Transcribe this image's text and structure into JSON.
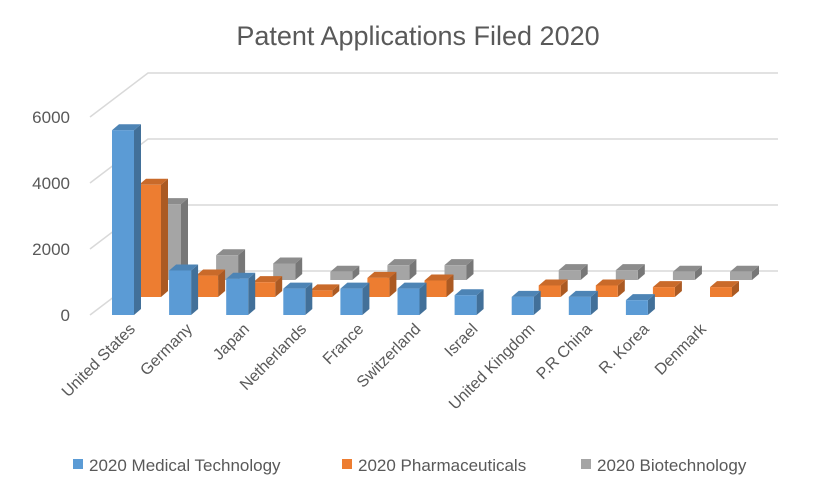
{
  "chart_data": {
    "type": "bar",
    "subtype": "3d-clustered-column",
    "title": "Patent Applications Filed 2020",
    "categories": [
      "United States",
      "Germany",
      "Japan",
      "Netherlands",
      "France",
      "Switzerland",
      "Israel",
      "United Kingdom",
      "P.R China",
      "R. Korea",
      "Denmark"
    ],
    "series": [
      {
        "name": "2020 Medical Technology",
        "color": "#5B9BD5",
        "values": [
          5600,
          1350,
          1100,
          800,
          800,
          800,
          600,
          550,
          550,
          450,
          null
        ]
      },
      {
        "name": "2020 Pharmaceuticals",
        "color": "#ED7D31",
        "values": [
          3400,
          650,
          450,
          200,
          580,
          500,
          null,
          350,
          350,
          300,
          300
        ]
      },
      {
        "name": "2020 Biotechnology",
        "color": "#A5A5A5",
        "values": [
          2300,
          750,
          500,
          250,
          450,
          450,
          null,
          300,
          300,
          250,
          250
        ]
      }
    ],
    "yticks": [
      "0",
      "2000",
      "4000",
      "6000"
    ],
    "ylim": [
      0,
      6000
    ],
    "grid": true,
    "legend": "bottom"
  }
}
